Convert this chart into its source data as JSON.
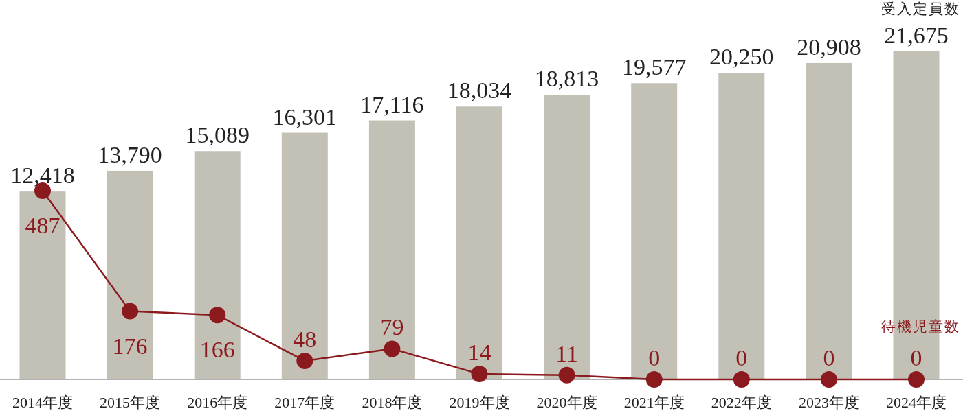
{
  "chart_data": {
    "type": "bar",
    "categories": [
      "2014年度",
      "2015年度",
      "2016年度",
      "2017年度",
      "2018年度",
      "2019年度",
      "2020年度",
      "2021年度",
      "2022年度",
      "2023年度",
      "2024年度"
    ],
    "series": [
      {
        "name": "受入定員数",
        "color": "#c3c1b5",
        "values": [
          12418,
          13790,
          15089,
          16301,
          17116,
          18034,
          18813,
          19577,
          20250,
          20908,
          21675
        ],
        "value_labels": [
          "12,418",
          "13,790",
          "15,089",
          "16,301",
          "17,116",
          "18,034",
          "18,813",
          "19,577",
          "20,250",
          "20,908",
          "21,675"
        ]
      },
      {
        "name": "待機児童数",
        "type": "line",
        "axis": "y2",
        "color": "#8b1a1f",
        "marker": "circle",
        "values": [
          487,
          176,
          166,
          48,
          79,
          14,
          11,
          0,
          0,
          0,
          0
        ]
      }
    ],
    "data_labels": true
  }
}
